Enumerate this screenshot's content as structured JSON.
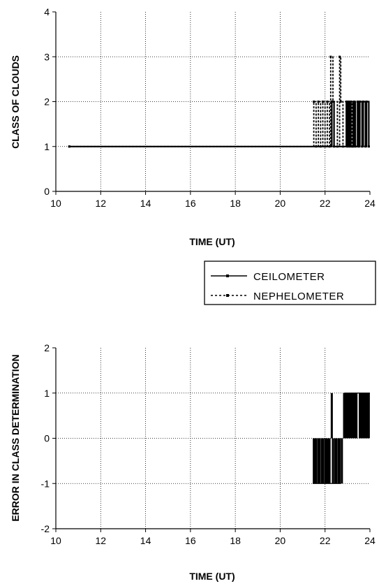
{
  "chart_data": [
    {
      "type": "line",
      "ylabel": "CLASS OF CLOUDS",
      "xlabel": "TIME (UT)",
      "xlim": [
        10,
        24
      ],
      "ylim": [
        0,
        4
      ],
      "xticks": [
        "10",
        "12",
        "14",
        "16",
        "18",
        "20",
        "22",
        "24"
      ],
      "yticks": [
        "0",
        "1",
        "2",
        "3",
        "4"
      ],
      "grid": true,
      "series": [
        {
          "name": "CEILOMETER",
          "style": "solid",
          "x": [
            10.6,
            22.3,
            22.3,
            22.4,
            22.4,
            22.95,
            22.95,
            23.0,
            23.0,
            23.05,
            23.05,
            23.1,
            23.1,
            23.15,
            23.15,
            23.25,
            23.25,
            23.3,
            23.3,
            23.35,
            23.35,
            23.45,
            23.45,
            23.5,
            23.5,
            23.55,
            23.55,
            23.65,
            23.65,
            23.7,
            23.7,
            23.8,
            23.8,
            23.85,
            23.85,
            23.95,
            23.95,
            24.0
          ],
          "y": [
            1,
            1,
            2,
            2,
            1,
            1,
            2,
            2,
            1,
            1,
            2,
            2,
            1,
            1,
            2,
            2,
            1,
            1,
            2,
            2,
            1,
            1,
            2,
            2,
            1,
            1,
            2,
            2,
            1,
            1,
            2,
            2,
            1,
            1,
            2,
            2,
            1,
            1
          ]
        },
        {
          "name": "NEPHELOMETER",
          "style": "dashed",
          "x": [
            10.6,
            21.5,
            21.5,
            21.6,
            21.6,
            21.7,
            21.7,
            21.8,
            21.8,
            21.9,
            21.9,
            22.0,
            22.0,
            22.1,
            22.1,
            22.2,
            22.2,
            22.25,
            22.25,
            22.35,
            22.35,
            22.55,
            22.55,
            22.65,
            22.65,
            22.7,
            22.7,
            22.8,
            22.8,
            23.0,
            23.0,
            23.2,
            23.2,
            24.0
          ],
          "y": [
            1,
            1,
            2,
            2,
            1,
            1,
            2,
            2,
            1,
            1,
            2,
            2,
            1,
            1,
            2,
            2,
            1,
            1,
            3,
            3,
            2,
            2,
            1,
            1,
            3,
            3,
            2,
            2,
            1,
            1,
            2,
            2,
            1,
            1
          ]
        }
      ],
      "legend": "below-right"
    },
    {
      "type": "bar",
      "ylabel": "ERROR IN CLASS DETERMINATION",
      "xlabel": "TIME (UT)",
      "xlim": [
        10,
        24
      ],
      "ylim": [
        -2,
        2
      ],
      "xticks": [
        "10",
        "12",
        "14",
        "16",
        "18",
        "20",
        "22",
        "24"
      ],
      "yticks": [
        "-2",
        "-1",
        "0",
        "1",
        "2"
      ],
      "grid": true,
      "x": [
        21.5,
        21.55,
        21.6,
        21.7,
        21.75,
        21.85,
        21.9,
        22.0,
        22.05,
        22.1,
        22.15,
        22.2,
        22.3,
        22.35,
        22.45,
        22.5,
        22.6,
        22.65,
        22.75,
        22.85,
        22.9,
        22.95,
        23.0,
        23.05,
        23.1,
        23.15,
        23.2,
        23.25,
        23.3,
        23.35,
        23.4,
        23.55,
        23.6,
        23.65,
        23.7,
        23.75,
        23.8,
        23.85,
        23.9,
        23.95
      ],
      "values": [
        -1,
        -1,
        -1,
        -1,
        -1,
        -1,
        -1,
        -1,
        -1,
        -1,
        -1,
        -1,
        1,
        -1,
        -1,
        -1,
        -1,
        -1,
        -1,
        1,
        1,
        1,
        1,
        1,
        1,
        1,
        1,
        1,
        1,
        1,
        1,
        1,
        1,
        1,
        1,
        1,
        1,
        1,
        1,
        1
      ]
    }
  ],
  "legend": {
    "items": [
      {
        "label": "CEILOMETER",
        "style": "solid"
      },
      {
        "label": "NEPHELOMETER",
        "style": "dashed"
      }
    ]
  }
}
